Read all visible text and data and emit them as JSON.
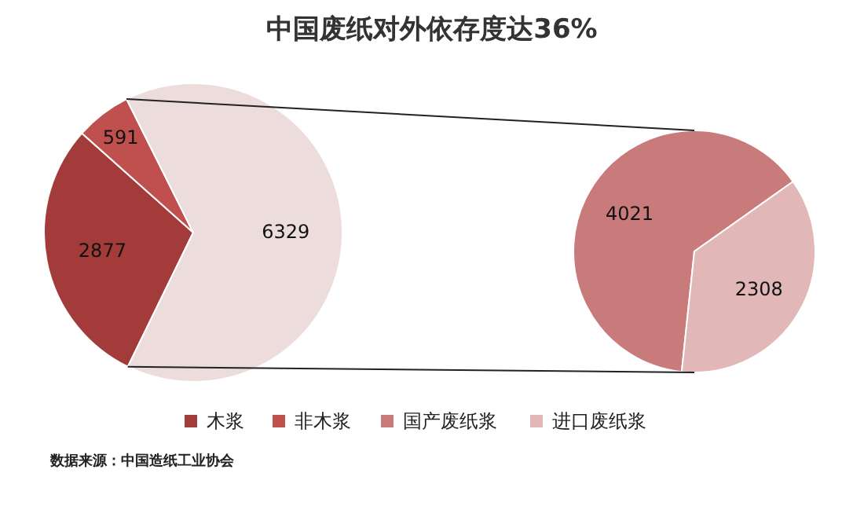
{
  "chart_data": [
    {
      "type": "pie",
      "title": "中国废纸对外依存度达36%",
      "categories": [
        "木浆",
        "非木浆",
        null
      ],
      "values": [
        2877,
        591,
        6329
      ],
      "colors": [
        "#a33b3b",
        "#c0504d",
        "#eddcdc"
      ],
      "data_labels": true,
      "legend": "bottom",
      "annotations": [
        "数据来源：中国造纸工业协会"
      ]
    },
    {
      "type": "pie",
      "categories": [
        "国产废纸浆",
        "进口废纸浆"
      ],
      "values": [
        4021,
        2308
      ],
      "colors": [
        "#c97b7b",
        "#e2b7b7"
      ],
      "data_labels": true,
      "legend": "bottom"
    }
  ]
}
